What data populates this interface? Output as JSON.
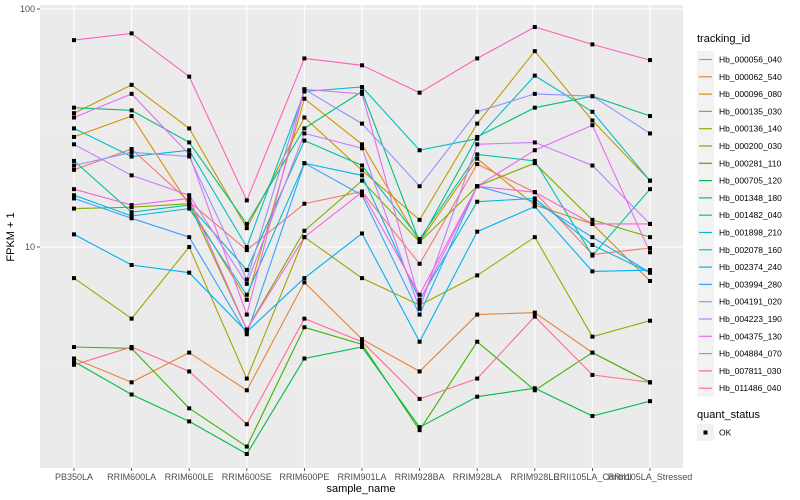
{
  "chart_data": {
    "type": "line",
    "title": "",
    "xlabel": "sample_name",
    "ylabel": "FPKM + 1",
    "yscale": "log10",
    "ylim": [
      1.18,
      104
    ],
    "yticks": [
      {
        "value": 10,
        "label": "10"
      },
      {
        "value": 100,
        "label": "100"
      }
    ],
    "grid": true,
    "legend_position": "right",
    "categories": [
      "PB350LA",
      "RRIM600LA",
      "RRIM600LE",
      "RRIM600SE",
      "RRIM600PE",
      "RRIM901LA",
      "RRIM928BA",
      "RRIM928LA",
      "RRIM928LE",
      "RRII105LA_Control",
      "RRII105LA_Stressed"
    ],
    "color_legend_title": "tracking_id",
    "shape_legend_title": "quant_status",
    "shape_legend_items": [
      {
        "label": "OK",
        "shape": "square"
      }
    ],
    "series": [
      {
        "name": "Hb_000056_040",
        "color": "#F8766D",
        "values": [
          21.1,
          25.8,
          15.5,
          9.7,
          15.2,
          17.1,
          8.5,
          22.3,
          17.0,
          9.3,
          9.9
        ]
      },
      {
        "name": "Hb_000062_540",
        "color": "#EA8331",
        "values": [
          3.4,
          2.7,
          3.6,
          2.5,
          7.1,
          4.1,
          3.0,
          5.2,
          5.3,
          3.6,
          2.7
        ]
      },
      {
        "name": "Hb_000096_080",
        "color": "#D89000",
        "values": [
          29.0,
          35.5,
          15.0,
          6.0,
          42.0,
          27.0,
          10.5,
          23.5,
          15.0,
          12.5,
          7.2
        ]
      },
      {
        "name": "Hb_000135_030",
        "color": "#C09B00",
        "values": [
          36.5,
          48.0,
          31.5,
          12.0,
          35.0,
          21.0,
          13.0,
          33.0,
          66.5,
          34.0,
          19.0
        ]
      },
      {
        "name": "Hb_000136_140",
        "color": "#A3A500",
        "values": [
          7.4,
          5.0,
          10.0,
          2.8,
          11.0,
          7.4,
          5.7,
          7.6,
          11.0,
          4.2,
          4.9
        ]
      },
      {
        "name": "Hb_000200_030",
        "color": "#7CAE00",
        "values": [
          14.5,
          14.7,
          15.2,
          4.5,
          11.7,
          19.0,
          10.5,
          18.0,
          22.5,
          13.0,
          11.0
        ]
      },
      {
        "name": "Hb_000281_110",
        "color": "#39B600",
        "values": [
          3.8,
          3.75,
          2.1,
          1.45,
          4.6,
          3.9,
          1.7,
          4.0,
          2.5,
          3.6,
          2.7
        ]
      },
      {
        "name": "Hb_000705_120",
        "color": "#00BB4E",
        "values": [
          3.3,
          2.4,
          1.85,
          1.35,
          3.4,
          3.8,
          1.75,
          2.35,
          2.55,
          1.95,
          2.25
        ]
      },
      {
        "name": "Hb_001348_180",
        "color": "#00BF7D",
        "values": [
          38.5,
          37.5,
          27.5,
          12.5,
          31.5,
          45.0,
          10.5,
          29.0,
          38.5,
          43.0,
          35.5
        ]
      },
      {
        "name": "Hb_001482_040",
        "color": "#00C1A3",
        "values": [
          23.0,
          14.0,
          15.0,
          8.0,
          28.0,
          22.0,
          10.8,
          24.5,
          23.0,
          9.2,
          17.5
        ]
      },
      {
        "name": "Hb_001898_210",
        "color": "#00BFC4",
        "values": [
          31.5,
          24.0,
          25.5,
          10.0,
          45.0,
          47.0,
          25.5,
          28.5,
          52.5,
          37.0,
          19.0
        ]
      },
      {
        "name": "Hb_002078_160",
        "color": "#00BAE0",
        "values": [
          16.5,
          13.5,
          14.5,
          6.3,
          22.5,
          20.0,
          6.0,
          15.5,
          16.0,
          10.2,
          7.8
        ]
      },
      {
        "name": "Hb_002374_240",
        "color": "#00B0F6",
        "values": [
          11.3,
          8.4,
          7.8,
          4.4,
          7.4,
          11.4,
          4.0,
          11.6,
          14.8,
          7.9,
          8.0
        ]
      },
      {
        "name": "Hb_003994_280",
        "color": "#35A2FF",
        "values": [
          16.0,
          13.2,
          11.0,
          4.3,
          22.5,
          16.5,
          5.2,
          18.0,
          15.5,
          11.0,
          7.8
        ]
      },
      {
        "name": "Hb_004191_020",
        "color": "#9590FF",
        "values": [
          22.0,
          25.0,
          24.0,
          7.3,
          46.0,
          33.0,
          18.0,
          37.0,
          44.0,
          43.0,
          30.0
        ]
      },
      {
        "name": "Hb_004223_190",
        "color": "#C77CFF",
        "values": [
          27.0,
          20.0,
          16.5,
          7.0,
          30.0,
          26.0,
          5.5,
          27.0,
          27.5,
          22.0,
          12.5
        ]
      },
      {
        "name": "Hb_004375_130",
        "color": "#E76BF3",
        "values": [
          35.0,
          44.0,
          24.5,
          5.2,
          46.0,
          44.0,
          5.9,
          18.0,
          25.5,
          32.5,
          9.5
        ]
      },
      {
        "name": "Hb_004884_070",
        "color": "#FA62DB",
        "values": [
          17.5,
          15.0,
          16.0,
          4.5,
          11.0,
          17.0,
          6.3,
          18.0,
          17.0,
          12.5,
          12.5
        ]
      },
      {
        "name": "Hb_007811_030",
        "color": "#FF62BC",
        "values": [
          74.0,
          79.0,
          52.0,
          15.7,
          62.0,
          58.0,
          44.5,
          62.0,
          84.0,
          71.0,
          61.0
        ]
      },
      {
        "name": "Hb_011486_040",
        "color": "#FF6C91",
        "values": [
          3.2,
          3.8,
          3.0,
          1.8,
          5.0,
          4.0,
          2.3,
          2.8,
          5.1,
          2.9,
          2.7
        ]
      }
    ]
  }
}
